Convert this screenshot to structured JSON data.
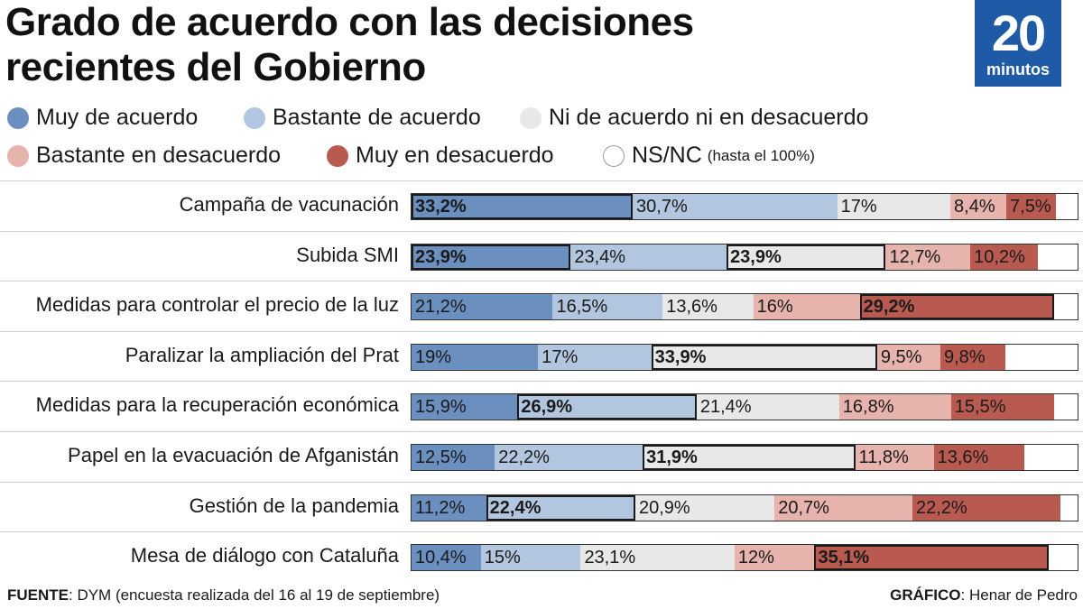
{
  "header": {
    "title_line1": "Grado de acuerdo con las decisiones",
    "title_line2": "recientes del Gobierno",
    "logo_number": "20",
    "logo_word": "minutos"
  },
  "colors": {
    "muy_acuerdo": "#6b8fbf",
    "bastante_acuerdo": "#b3c6df",
    "ni_ni": "#e8e8e8",
    "bastante_desacuerdo": "#e6b3ad",
    "muy_desacuerdo": "#b95a50",
    "nsnc": "#ffffff",
    "logo": "#1f5aa6"
  },
  "legend": [
    {
      "label": "Muy de acuerdo",
      "color": "#6b8fbf"
    },
    {
      "label": "Bastante de acuerdo",
      "color": "#b3c6df"
    },
    {
      "label": "Ni de acuerdo ni en desacuerdo",
      "color": "#e8e8e8"
    },
    {
      "label": "Bastante en desacuerdo",
      "color": "#e6b3ad"
    },
    {
      "label": "Muy en desacuerdo",
      "color": "#b95a50"
    },
    {
      "label": "NS/NC",
      "note": "(hasta el 100%)",
      "color": "#ffffff"
    }
  ],
  "chart_data": {
    "type": "bar",
    "stacked": true,
    "orientation": "horizontal",
    "title": "Grado de acuerdo con las decisiones recientes del Gobierno",
    "categories": [
      "Campaña de vacunación",
      "Subida SMI",
      "Medidas para controlar el precio de la luz",
      "Paralizar la ampliación del Prat",
      "Medidas para la recuperación económica",
      "Papel en la evacuación de Afganistán",
      "Gestión de la pandemia",
      "Mesa de diálogo con Cataluña"
    ],
    "series": [
      {
        "name": "Muy de acuerdo",
        "values": [
          33.2,
          23.9,
          21.2,
          19,
          15.9,
          12.5,
          11.2,
          10.4
        ],
        "labels": [
          "33,2%",
          "23,9%",
          "21,2%",
          "19%",
          "15,9%",
          "12,5%",
          "11,2%",
          "10,4%"
        ]
      },
      {
        "name": "Bastante de acuerdo",
        "values": [
          30.7,
          23.4,
          16.5,
          17,
          26.9,
          22.2,
          22.4,
          15
        ],
        "labels": [
          "30,7%",
          "23,4%",
          "16,5%",
          "17%",
          "26,9%",
          "22,2%",
          "22,4%",
          "15%"
        ]
      },
      {
        "name": "Ni de acuerdo ni en desacuerdo",
        "values": [
          17,
          23.9,
          13.6,
          33.9,
          21.4,
          31.9,
          20.9,
          23.1
        ],
        "labels": [
          "17%",
          "23,9%",
          "13,6%",
          "33,9%",
          "21,4%",
          "31,9%",
          "20,9%",
          "23,1%"
        ]
      },
      {
        "name": "Bastante en desacuerdo",
        "values": [
          8.4,
          12.7,
          16,
          9.5,
          16.8,
          11.8,
          20.7,
          12
        ],
        "labels": [
          "8,4%",
          "12,7%",
          "16%",
          "9,5%",
          "16,8%",
          "11,8%",
          "20,7%",
          "12%"
        ]
      },
      {
        "name": "Muy en desacuerdo",
        "values": [
          7.5,
          10.2,
          29.2,
          9.8,
          15.5,
          13.6,
          22.2,
          35.1
        ],
        "labels": [
          "7,5%",
          "10,2%",
          "29,2%",
          "9,8%",
          "15,5%",
          "13,6%",
          "22,2%",
          "35,1%"
        ]
      }
    ],
    "highlight_max": [
      0,
      0,
      4,
      2,
      1,
      2,
      1,
      4
    ],
    "highlight_tie": [
      [],
      [
        2
      ],
      [],
      [],
      [],
      [],
      [],
      []
    ],
    "xlim": [
      0,
      100
    ]
  },
  "footer": {
    "source_label": "FUENTE",
    "source_text": ": DYM (encuesta realizada del 16 al 19 de septiembre)",
    "credit_label": "GRÁFICO",
    "credit_text": ": Henar de Pedro"
  }
}
